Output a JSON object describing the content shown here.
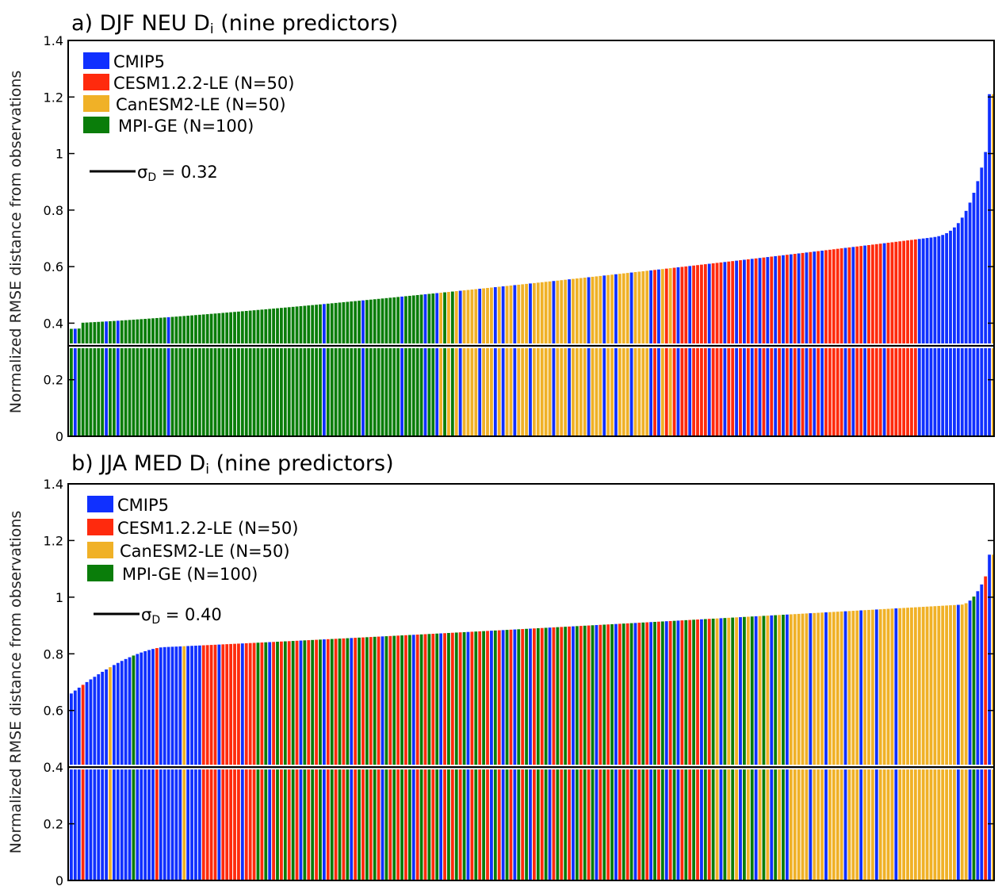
{
  "colors": {
    "cmip5": "#1030ff",
    "cesm": "#ff2a0d",
    "canesm": "#f0b127",
    "mpi": "#0a7d0a",
    "sigma_line": "#000000",
    "sigma_outline": "#ffffff",
    "frame": "#000000"
  },
  "ylabel": "Normalized RMSE distance from observations",
  "chart_data": [
    {
      "type": "bar",
      "title_main": "a) DJF NEU D",
      "title_sub": "i",
      "title_tail": " (nine predictors)",
      "ylim": [
        0,
        1.4
      ],
      "yticks": [
        0,
        0.2,
        0.4,
        0.6,
        0.8,
        1,
        1.2,
        1.4
      ],
      "ytick_labels": [
        "0",
        "0.2",
        "0.4",
        "0.6",
        "0.8",
        "1",
        "1.2",
        "1.4"
      ],
      "n_bars": 238,
      "legend": [
        {
          "key": "cmip5",
          "label": "CMIP5"
        },
        {
          "key": "cesm",
          "label": "CESM1.2.2-LE (N=50)"
        },
        {
          "key": "canesm",
          "label": "CanESM2-LE (N=50)"
        },
        {
          "key": "mpi",
          "label": "MPI-GE (N=100)"
        }
      ],
      "sigma": {
        "symbol": "σ",
        "sub": "D",
        "text": " =  0.32",
        "value": 0.32
      },
      "series": [
        {
          "name": "CMIP5",
          "key": "cmip5",
          "start": 0.38,
          "end": 1.21,
          "positions": [
            0.005,
            0.038,
            0.052,
            0.106,
            0.273,
            0.318,
            0.357,
            0.382,
            0.398,
            0.42,
            0.442,
            0.459,
            0.47,
            0.482,
            0.497,
            0.523,
            0.54,
            0.56,
            0.577,
            0.59,
            0.608,
            0.627,
            0.639,
            0.658,
            0.672,
            0.69,
            0.71,
            0.721,
            0.73,
            0.738,
            0.746,
            0.755,
            0.763,
            0.771,
            0.779,
            0.789,
            0.798,
            0.806,
            0.815,
            0.84,
            0.85,
            0.861,
            0.88,
            0.918,
            0.924,
            0.93,
            0.934,
            0.938,
            0.942,
            0.946,
            0.95,
            0.954,
            0.958,
            0.962,
            0.966,
            0.97,
            0.974,
            0.978,
            0.982,
            0.986,
            0.99,
            0.995
          ]
        },
        {
          "name": "CESM1.2.2-LE (N=50)",
          "key": "cesm",
          "start": 0.58,
          "end": 0.85,
          "range": [
            0.63,
            0.915
          ]
        },
        {
          "name": "CanESM2-LE (N=50)",
          "key": "canesm",
          "start": 0.49,
          "end": 0.59,
          "range": [
            0.395,
            0.655
          ]
        },
        {
          "name": "MPI-GE (N=100)",
          "key": "mpi",
          "start": 0.39,
          "end": 0.5,
          "range": [
            0.0,
            0.42
          ]
        }
      ]
    },
    {
      "type": "bar",
      "title_main": "b) JJA MED D",
      "title_sub": "i",
      "title_tail": " (nine predictors)",
      "ylim": [
        0,
        1.4
      ],
      "yticks": [
        0,
        0.2,
        0.4,
        0.6,
        0.8,
        1,
        1.2,
        1.4
      ],
      "ytick_labels": [
        "0",
        "0.2",
        "0.4",
        "0.6",
        "0.8",
        "1",
        "1.2",
        "1.4"
      ],
      "n_bars": 238,
      "legend": [
        {
          "key": "cmip5",
          "label": "CMIP5"
        },
        {
          "key": "cesm",
          "label": "CESM1.2.2-LE (N=50)"
        },
        {
          "key": "canesm",
          "label": "CanESM2-LE (N=50)"
        },
        {
          "key": "mpi",
          "label": "MPI-GE (N=100)"
        }
      ],
      "sigma": {
        "symbol": "σ",
        "sub": "D",
        "text": " =  0.40",
        "value": 0.4
      },
      "series": [
        {
          "name": "CMIP5",
          "key": "cmip5",
          "start": 0.66,
          "end": 1.15,
          "positions": [
            0.0,
            0.005,
            0.01,
            0.015,
            0.02,
            0.025,
            0.03,
            0.035,
            0.04,
            0.045,
            0.05,
            0.055,
            0.06,
            0.065,
            0.07,
            0.075,
            0.08,
            0.085,
            0.09,
            0.095,
            0.1,
            0.105,
            0.11,
            0.115,
            0.12,
            0.125,
            0.13,
            0.135,
            0.139,
            0.16,
            0.186,
            0.214,
            0.248,
            0.275,
            0.303,
            0.338,
            0.372,
            0.401,
            0.432,
            0.455,
            0.468,
            0.48,
            0.498,
            0.52,
            0.545,
            0.568,
            0.59,
            0.61,
            0.628,
            0.645,
            0.66,
            0.682,
            0.705,
            0.724,
            0.742,
            0.76,
            0.778,
            0.8,
            0.82,
            0.838,
            0.856,
            0.874,
            0.895,
            0.962,
            0.976,
            0.982,
            0.988,
            0.994
          ]
        },
        {
          "name": "CESM1.2.2-LE (N=50)",
          "key": "cesm",
          "start": 0.81,
          "end": 0.92,
          "range": [
            0.14,
            0.7
          ]
        },
        {
          "name": "CanESM2-LE (N=50)",
          "key": "canesm",
          "start": 0.9,
          "end": 0.99,
          "range": [
            0.7,
            0.975
          ]
        },
        {
          "name": "MPI-GE (N=100)",
          "key": "mpi",
          "start": 0.82,
          "end": 0.91,
          "range": [
            0.2,
            0.78
          ]
        }
      ]
    }
  ]
}
